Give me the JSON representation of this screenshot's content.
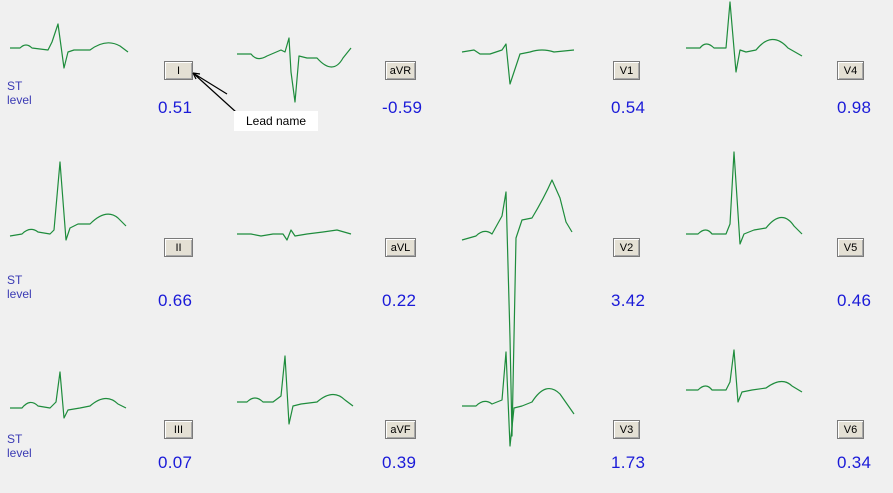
{
  "st_label": {
    "line1": "ST",
    "line2": "level"
  },
  "annotation": "Lead name",
  "leads": [
    {
      "name": "I",
      "value": "0.51"
    },
    {
      "name": "aVR",
      "value": "-0.59"
    },
    {
      "name": "V1",
      "value": "0.54"
    },
    {
      "name": "V4",
      "value": "0.98"
    },
    {
      "name": "II",
      "value": "0.66"
    },
    {
      "name": "aVL",
      "value": "0.22"
    },
    {
      "name": "V2",
      "value": "3.42"
    },
    {
      "name": "V5",
      "value": "0.46"
    },
    {
      "name": "III",
      "value": "0.07"
    },
    {
      "name": "aVF",
      "value": "0.39"
    },
    {
      "name": "V3",
      "value": "1.73"
    },
    {
      "name": "V6",
      "value": "0.34"
    }
  ],
  "colors": {
    "trace": "#1e8c3c",
    "value_text": "#1a1ad8",
    "label_text": "#3a3ab4",
    "background": "#f0f0f0"
  }
}
